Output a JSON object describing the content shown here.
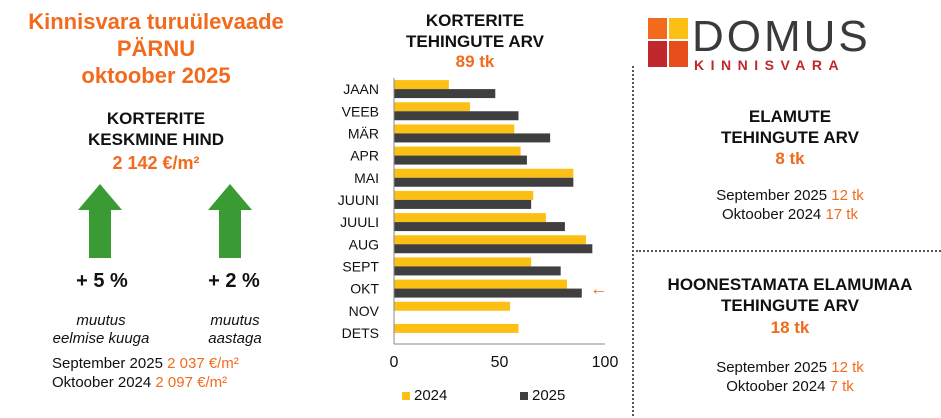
{
  "colors": {
    "accent": "#f26b1d",
    "series_2024": "#fcbf14",
    "series_2025": "#3f3f3f",
    "arrow_green": "#3a9a34",
    "logo_red": "#c0282d"
  },
  "header": {
    "line1": "Kinnisvara turuülevaade",
    "line2": "PÄRNU",
    "line3": "oktoober 2025"
  },
  "avg_price": {
    "label_line1": "KORTERITE",
    "label_line2": "KESKMINE HIND",
    "value": "2 142 €/m²",
    "change_left": {
      "value": "+ 5 %",
      "label_line1": "muutus",
      "label_line2": "eelmise kuuga",
      "icon": "arrow-up-icon"
    },
    "change_right": {
      "value": "+ 2 %",
      "label_line1": "muutus",
      "label_line2": "aastaga",
      "icon": "arrow-up-icon"
    },
    "compare": [
      {
        "label": "September 2025",
        "value": "2 037 €/m²"
      },
      {
        "label": "Oktoober 2024",
        "value": "2 097 €/m²"
      }
    ]
  },
  "apartments": {
    "label_line1": "KORTERITE",
    "label_line2": "TEHINGUTE ARV",
    "value": "89 tk",
    "current_marker": "←"
  },
  "logo": {
    "word": "DOMUS",
    "sub": "KINNISVARA"
  },
  "houses": {
    "label_line1": "ELAMUTE",
    "label_line2": "TEHINGUTE ARV",
    "value": "8 tk",
    "compare": [
      {
        "label": "September 2025",
        "value": "12 tk"
      },
      {
        "label": "Oktoober 2024",
        "value": "17 tk"
      }
    ]
  },
  "land": {
    "label_line1": "HOONESTAMATA ELAMUMAA",
    "label_line2": "TEHINGUTE ARV",
    "value": "18 tk",
    "compare": [
      {
        "label": "September 2025",
        "value": "12 tk"
      },
      {
        "label": "Oktoober 2024",
        "value": "7 tk"
      }
    ]
  },
  "chart_data": {
    "type": "bar",
    "orientation": "horizontal",
    "categories": [
      "JAAN",
      "VEEB",
      "MÄR",
      "APR",
      "MAI",
      "JUUNI",
      "JUULI",
      "AUG",
      "SEPT",
      "OKT",
      "NOV",
      "DETS"
    ],
    "series": [
      {
        "name": "2024",
        "values": [
          26,
          36,
          57,
          60,
          85,
          66,
          72,
          91,
          65,
          82,
          55,
          59
        ]
      },
      {
        "name": "2025",
        "values": [
          48,
          59,
          74,
          63,
          85,
          65,
          81,
          94,
          79,
          89,
          null,
          null
        ]
      }
    ],
    "xlim": [
      0,
      100
    ],
    "xticks": [
      0,
      50,
      100
    ],
    "grid": false,
    "legend": "bottom"
  }
}
